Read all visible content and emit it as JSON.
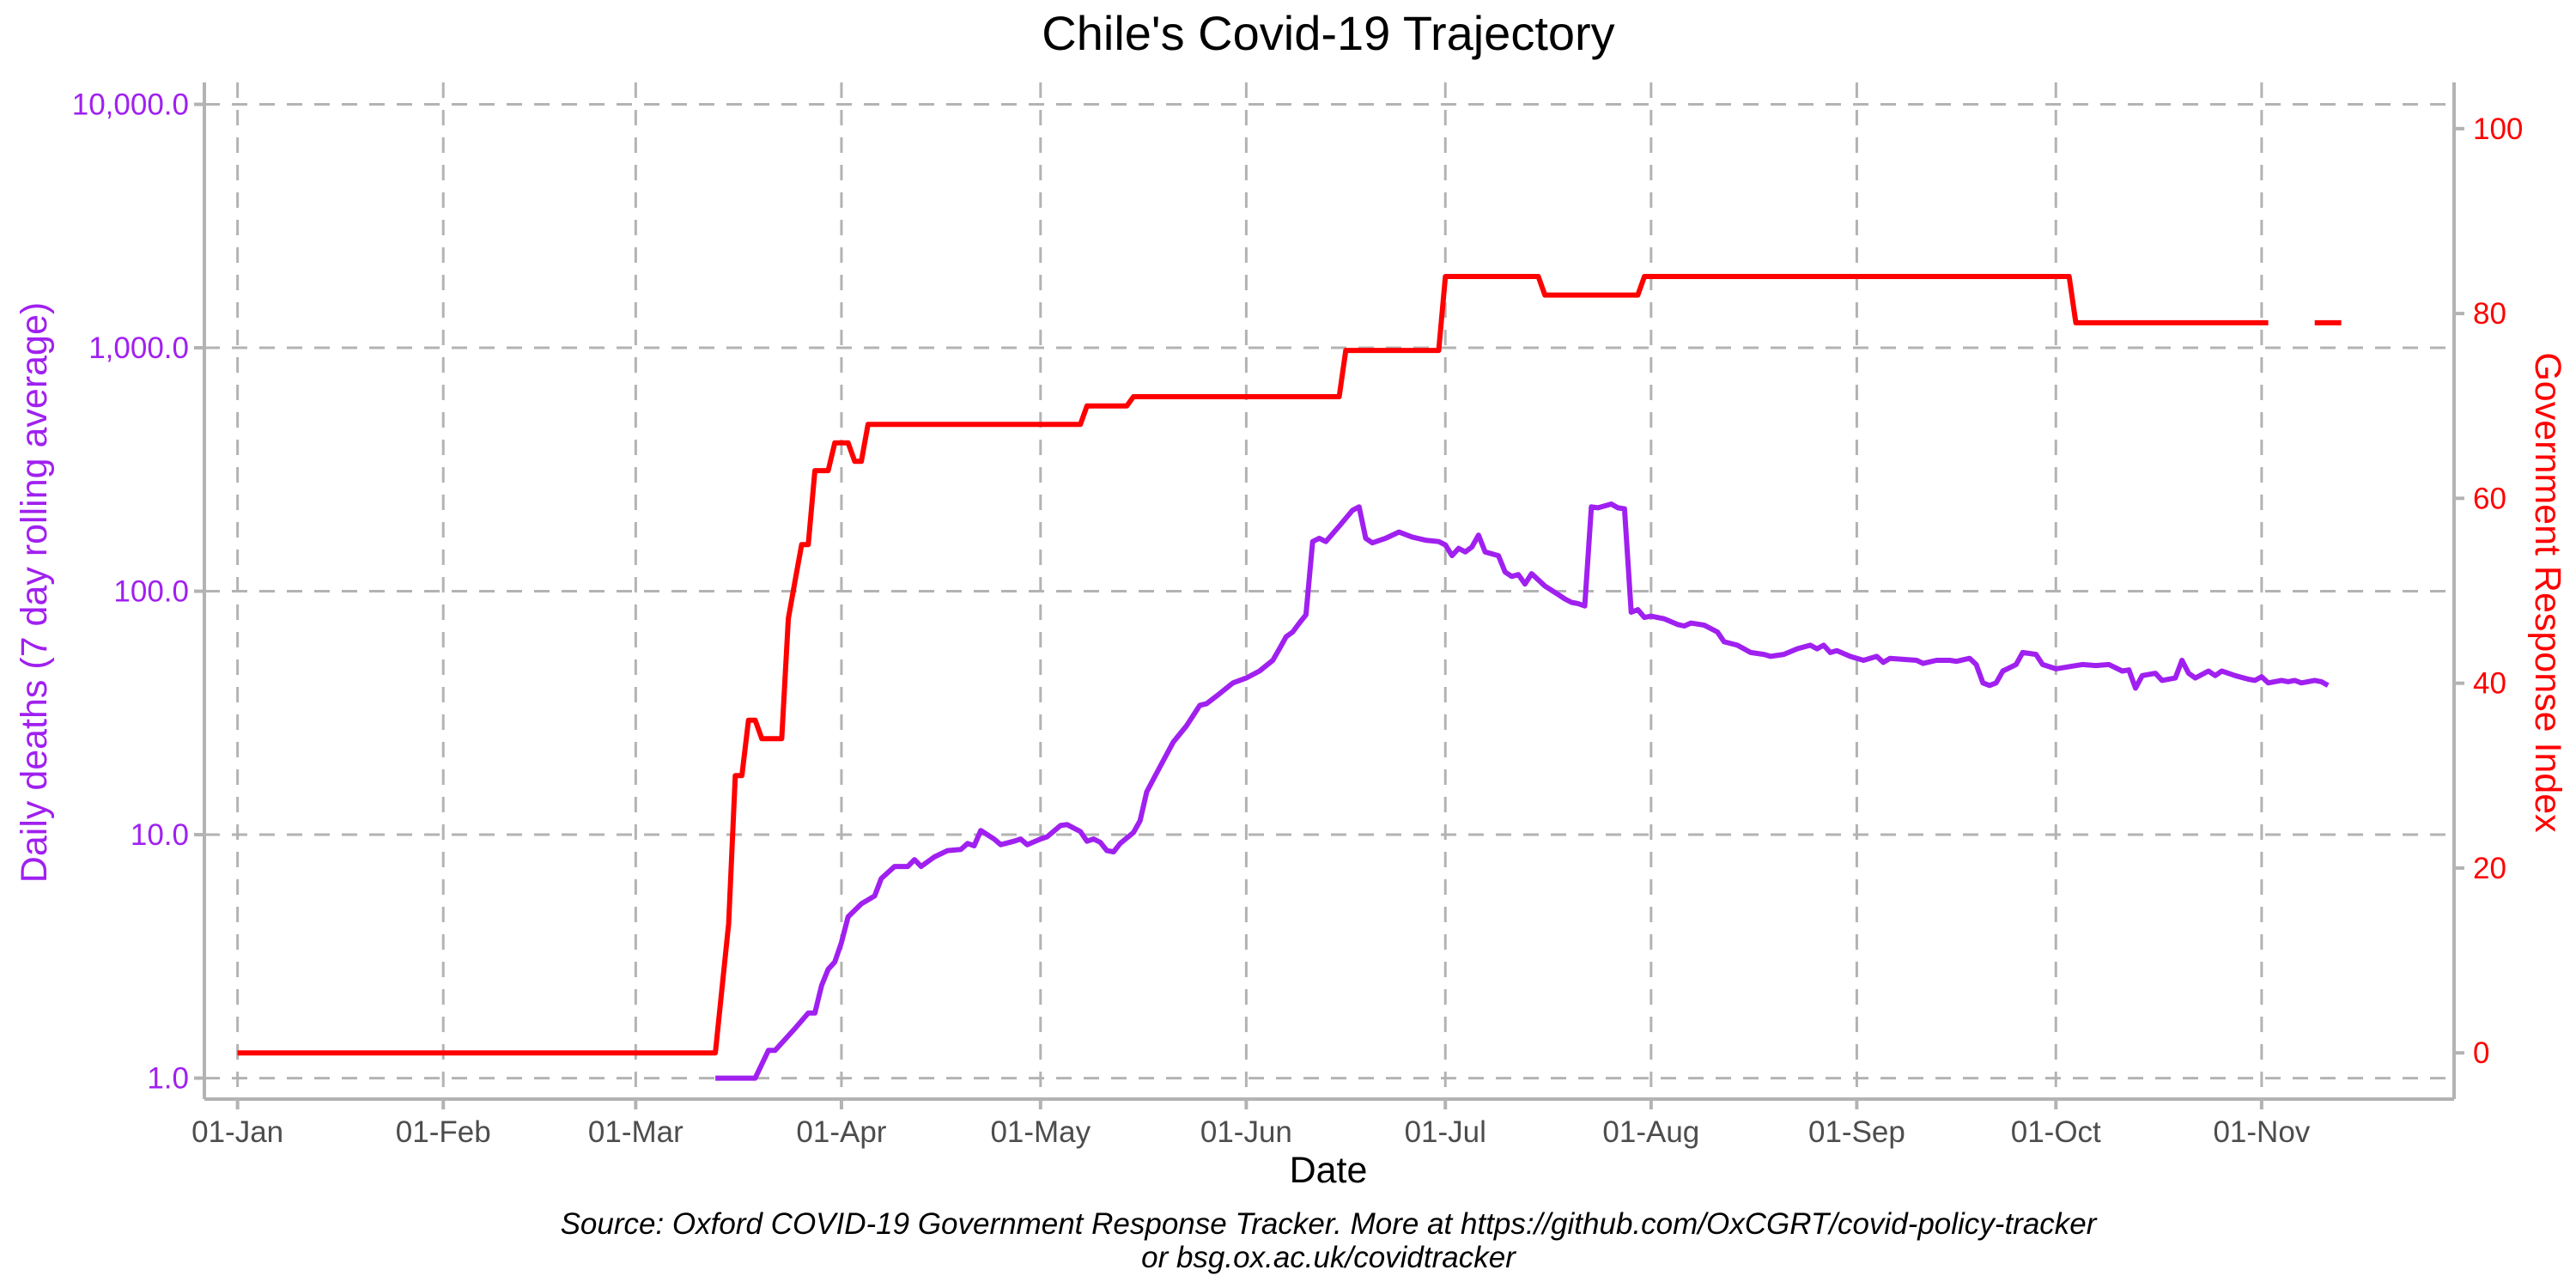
{
  "chart_data": {
    "type": "line",
    "title": "Chile's Covid-19 Trajectory",
    "xlabel": "Date",
    "ylabel_left": "Daily deaths (7 day rolling average)",
    "ylabel_right": "Government Response Index",
    "caption": [
      "Source: Oxford COVID-19 Government Response Tracker. More at https://github.com/OxCGRT/covid-policy-tracker",
      "or bsg.ox.ac.uk/covidtracker"
    ],
    "x_range": [
      "2019-12-27",
      "2020-11-30"
    ],
    "x_ticks": [
      {
        "date": "2020-01-01",
        "label": "01-Jan"
      },
      {
        "date": "2020-02-01",
        "label": "01-Feb"
      },
      {
        "date": "2020-03-01",
        "label": "01-Mar"
      },
      {
        "date": "2020-04-01",
        "label": "01-Apr"
      },
      {
        "date": "2020-05-01",
        "label": "01-May"
      },
      {
        "date": "2020-06-01",
        "label": "01-Jun"
      },
      {
        "date": "2020-07-01",
        "label": "01-Jul"
      },
      {
        "date": "2020-08-01",
        "label": "01-Aug"
      },
      {
        "date": "2020-09-01",
        "label": "01-Sep"
      },
      {
        "date": "2020-10-01",
        "label": "01-Oct"
      },
      {
        "date": "2020-11-01",
        "label": "01-Nov"
      }
    ],
    "y_left": {
      "scale": "log10",
      "range": [
        0.82,
        12300
      ],
      "ticks": [
        {
          "value": 1,
          "label": "1.0"
        },
        {
          "value": 10,
          "label": "10.0"
        },
        {
          "value": 100,
          "label": "100.0"
        },
        {
          "value": 1000,
          "label": "1,000.0"
        },
        {
          "value": 10000,
          "label": "10,000.0"
        }
      ]
    },
    "y_right": {
      "scale": "linear",
      "range": [
        -5,
        105
      ],
      "ticks": [
        {
          "value": 0,
          "label": "0"
        },
        {
          "value": 20,
          "label": "20"
        },
        {
          "value": 40,
          "label": "40"
        },
        {
          "value": 60,
          "label": "60"
        },
        {
          "value": 80,
          "label": "80"
        },
        {
          "value": 100,
          "label": "100"
        }
      ]
    },
    "grid": true,
    "colors": {
      "deaths": "#a020f0",
      "stringency": "#ff0000"
    },
    "series": [
      {
        "key": "deaths",
        "axis": "left",
        "points": [
          [
            "2020-03-13",
            1.0
          ],
          [
            "2020-03-19",
            1.0
          ],
          [
            "2020-03-21",
            1.3
          ],
          [
            "2020-03-22",
            1.3
          ],
          [
            "2020-03-25",
            1.6
          ],
          [
            "2020-03-27",
            1.85
          ],
          [
            "2020-03-28",
            1.85
          ],
          [
            "2020-03-29",
            2.4
          ],
          [
            "2020-03-30",
            2.8
          ],
          [
            "2020-03-31",
            3.0
          ],
          [
            "2020-04-01",
            3.6
          ],
          [
            "2020-04-02",
            4.6
          ],
          [
            "2020-04-04",
            5.2
          ],
          [
            "2020-04-06",
            5.6
          ],
          [
            "2020-04-07",
            6.6
          ],
          [
            "2020-04-09",
            7.4
          ],
          [
            "2020-04-11",
            7.4
          ],
          [
            "2020-04-12",
            7.9
          ],
          [
            "2020-04-13",
            7.4
          ],
          [
            "2020-04-15",
            8.1
          ],
          [
            "2020-04-17",
            8.6
          ],
          [
            "2020-04-19",
            8.7
          ],
          [
            "2020-04-20",
            9.2
          ],
          [
            "2020-04-21",
            9.0
          ],
          [
            "2020-04-22",
            10.4
          ],
          [
            "2020-04-24",
            9.6
          ],
          [
            "2020-04-25",
            9.1
          ],
          [
            "2020-04-27",
            9.4
          ],
          [
            "2020-04-28",
            9.6
          ],
          [
            "2020-04-29",
            9.1
          ],
          [
            "2020-05-01",
            9.6
          ],
          [
            "2020-05-02",
            9.8
          ],
          [
            "2020-05-04",
            10.9
          ],
          [
            "2020-05-05",
            11.0
          ],
          [
            "2020-05-07",
            10.3
          ],
          [
            "2020-05-08",
            9.4
          ],
          [
            "2020-05-09",
            9.6
          ],
          [
            "2020-05-10",
            9.3
          ],
          [
            "2020-05-11",
            8.6
          ],
          [
            "2020-05-12",
            8.5
          ],
          [
            "2020-05-13",
            9.2
          ],
          [
            "2020-05-15",
            10.2
          ],
          [
            "2020-05-16",
            11.4
          ],
          [
            "2020-05-17",
            15.0
          ],
          [
            "2020-05-19",
            19.0
          ],
          [
            "2020-05-21",
            24.0
          ],
          [
            "2020-05-23",
            28.0
          ],
          [
            "2020-05-25",
            34.0
          ],
          [
            "2020-05-26",
            34.5
          ],
          [
            "2020-05-28",
            38.0
          ],
          [
            "2020-05-30",
            42.0
          ],
          [
            "2020-06-01",
            44.0
          ],
          [
            "2020-06-03",
            47.0
          ],
          [
            "2020-06-05",
            52.0
          ],
          [
            "2020-06-06",
            58.0
          ],
          [
            "2020-06-07",
            65.0
          ],
          [
            "2020-06-08",
            68.0
          ],
          [
            "2020-06-09",
            74.0
          ],
          [
            "2020-06-10",
            80.0
          ],
          [
            "2020-06-11",
            160.0
          ],
          [
            "2020-06-12",
            165.0
          ],
          [
            "2020-06-13",
            160.0
          ],
          [
            "2020-06-15",
            185.0
          ],
          [
            "2020-06-17",
            215.0
          ],
          [
            "2020-06-18",
            222.0
          ],
          [
            "2020-06-19",
            165.0
          ],
          [
            "2020-06-20",
            158.0
          ],
          [
            "2020-06-22",
            165.0
          ],
          [
            "2020-06-24",
            175.0
          ],
          [
            "2020-06-26",
            167.0
          ],
          [
            "2020-06-28",
            162.0
          ],
          [
            "2020-06-30",
            160.0
          ],
          [
            "2020-07-01",
            155.0
          ],
          [
            "2020-07-02",
            140.0
          ],
          [
            "2020-07-03",
            150.0
          ],
          [
            "2020-07-04",
            145.0
          ],
          [
            "2020-07-05",
            152.0
          ],
          [
            "2020-07-06",
            170.0
          ],
          [
            "2020-07-07",
            145.0
          ],
          [
            "2020-07-09",
            140.0
          ],
          [
            "2020-07-10",
            120.0
          ],
          [
            "2020-07-11",
            115.0
          ],
          [
            "2020-07-12",
            117.0
          ],
          [
            "2020-07-13",
            107.0
          ],
          [
            "2020-07-14",
            118.0
          ],
          [
            "2020-07-16",
            105.0
          ],
          [
            "2020-07-18",
            97.0
          ],
          [
            "2020-07-19",
            93.0
          ],
          [
            "2020-07-20",
            90.0
          ],
          [
            "2020-07-21",
            89.0
          ],
          [
            "2020-07-22",
            87.0
          ],
          [
            "2020-07-23",
            222.0
          ],
          [
            "2020-07-24",
            220.0
          ],
          [
            "2020-07-26",
            228.0
          ],
          [
            "2020-07-27",
            220.0
          ],
          [
            "2020-07-28",
            218.0
          ],
          [
            "2020-07-29",
            82.0
          ],
          [
            "2020-07-30",
            84.0
          ],
          [
            "2020-07-31",
            78.0
          ],
          [
            "2020-08-01",
            79.0
          ],
          [
            "2020-08-03",
            77.0
          ],
          [
            "2020-08-05",
            73.0
          ],
          [
            "2020-08-06",
            72.0
          ],
          [
            "2020-08-07",
            74.0
          ],
          [
            "2020-08-09",
            72.5
          ],
          [
            "2020-08-11",
            68.0
          ],
          [
            "2020-08-12",
            62.0
          ],
          [
            "2020-08-14",
            60.0
          ],
          [
            "2020-08-16",
            56.0
          ],
          [
            "2020-08-18",
            55.0
          ],
          [
            "2020-08-19",
            54.0
          ],
          [
            "2020-08-21",
            55.0
          ],
          [
            "2020-08-23",
            58.0
          ],
          [
            "2020-08-25",
            60.0
          ],
          [
            "2020-08-26",
            58.0
          ],
          [
            "2020-08-27",
            60.0
          ],
          [
            "2020-08-28",
            56.0
          ],
          [
            "2020-08-29",
            57.0
          ],
          [
            "2020-08-31",
            54.0
          ],
          [
            "2020-09-02",
            52.0
          ],
          [
            "2020-09-04",
            54.0
          ],
          [
            "2020-09-05",
            51.0
          ],
          [
            "2020-09-06",
            53.0
          ],
          [
            "2020-09-08",
            52.5
          ],
          [
            "2020-09-10",
            52.0
          ],
          [
            "2020-09-11",
            50.5
          ],
          [
            "2020-09-13",
            52.0
          ],
          [
            "2020-09-15",
            52.0
          ],
          [
            "2020-09-16",
            51.5
          ],
          [
            "2020-09-18",
            53.0
          ],
          [
            "2020-09-19",
            50.0
          ],
          [
            "2020-09-20",
            42.0
          ],
          [
            "2020-09-21",
            41.0
          ],
          [
            "2020-09-22",
            42.0
          ],
          [
            "2020-09-23",
            47.0
          ],
          [
            "2020-09-25",
            50.0
          ],
          [
            "2020-09-26",
            56.0
          ],
          [
            "2020-09-28",
            55.0
          ],
          [
            "2020-09-29",
            50.0
          ],
          [
            "2020-10-01",
            48.0
          ],
          [
            "2020-10-03",
            49.0
          ],
          [
            "2020-10-05",
            50.0
          ],
          [
            "2020-10-07",
            49.5
          ],
          [
            "2020-10-09",
            50.0
          ],
          [
            "2020-10-11",
            47.0
          ],
          [
            "2020-10-12",
            47.5
          ],
          [
            "2020-10-13",
            40.0
          ],
          [
            "2020-10-14",
            45.0
          ],
          [
            "2020-10-16",
            46.0
          ],
          [
            "2020-10-17",
            43.0
          ],
          [
            "2020-10-19",
            44.0
          ],
          [
            "2020-10-20",
            52.0
          ],
          [
            "2020-10-21",
            46.0
          ],
          [
            "2020-10-22",
            44.0
          ],
          [
            "2020-10-24",
            47.0
          ],
          [
            "2020-10-25",
            45.0
          ],
          [
            "2020-10-26",
            47.0
          ],
          [
            "2020-10-28",
            45.0
          ],
          [
            "2020-10-30",
            43.5
          ],
          [
            "2020-10-31",
            43.0
          ],
          [
            "2020-11-01",
            44.5
          ],
          [
            "2020-11-02",
            42.0
          ],
          [
            "2020-11-04",
            43.0
          ],
          [
            "2020-11-05",
            42.5
          ],
          [
            "2020-11-06",
            43.0
          ],
          [
            "2020-11-07",
            42.0
          ],
          [
            "2020-11-09",
            43.0
          ],
          [
            "2020-11-10",
            42.5
          ],
          [
            "2020-11-11",
            41.0
          ]
        ]
      },
      {
        "key": "stringency",
        "axis": "right",
        "segments": [
          [
            [
              "2020-01-01",
              0
            ],
            [
              "2020-03-13",
              0
            ],
            [
              "2020-03-15",
              14
            ],
            [
              "2020-03-16",
              30
            ],
            [
              "2020-03-17",
              30
            ],
            [
              "2020-03-18",
              36
            ],
            [
              "2020-03-19",
              36
            ],
            [
              "2020-03-20",
              34
            ],
            [
              "2020-03-23",
              34
            ],
            [
              "2020-03-24",
              47
            ],
            [
              "2020-03-25",
              51
            ],
            [
              "2020-03-26",
              55
            ],
            [
              "2020-03-27",
              55
            ],
            [
              "2020-03-28",
              63
            ],
            [
              "2020-03-30",
              63
            ],
            [
              "2020-03-31",
              66
            ],
            [
              "2020-04-02",
              66
            ],
            [
              "2020-04-03",
              64
            ],
            [
              "2020-04-04",
              64
            ],
            [
              "2020-04-05",
              68
            ],
            [
              "2020-05-07",
              68
            ],
            [
              "2020-05-08",
              70
            ],
            [
              "2020-05-14",
              70
            ],
            [
              "2020-05-15",
              71
            ],
            [
              "2020-06-15",
              71
            ],
            [
              "2020-06-16",
              76
            ],
            [
              "2020-06-30",
              76
            ],
            [
              "2020-07-01",
              84
            ],
            [
              "2020-07-15",
              84
            ],
            [
              "2020-07-16",
              82
            ],
            [
              "2020-07-30",
              82
            ],
            [
              "2020-07-31",
              84
            ],
            [
              "2020-10-03",
              84
            ],
            [
              "2020-10-04",
              79
            ],
            [
              "2020-11-02",
              79
            ]
          ],
          [
            [
              "2020-11-09",
              79
            ],
            [
              "2020-11-13",
              79
            ]
          ]
        ]
      }
    ]
  }
}
